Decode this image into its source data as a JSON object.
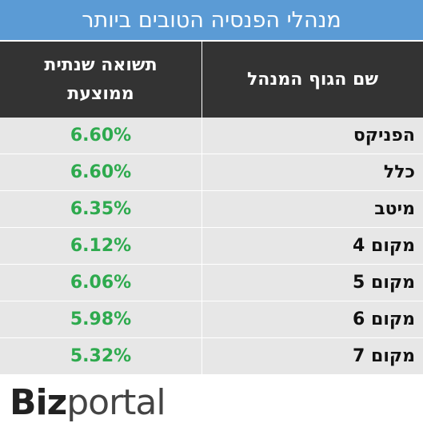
{
  "header": {
    "title": "מנהלי הפנסיה הטובים ביותר"
  },
  "table": {
    "columns": [
      "שם הגוף המנהל",
      "תשואה שנתית ממוצעת"
    ],
    "rows": [
      [
        "הפניקס",
        "6.60%"
      ],
      [
        "כלל",
        "6.60%"
      ],
      [
        "מיטב",
        "6.35%"
      ],
      [
        "מקום 4",
        "6.12%"
      ],
      [
        "מקום 5",
        "6.06%"
      ],
      [
        "מקום 6",
        "5.98%"
      ],
      [
        "מקום 7",
        "5.32%"
      ]
    ]
  },
  "logo": {
    "bold": "Biz",
    "light": "portal"
  }
}
